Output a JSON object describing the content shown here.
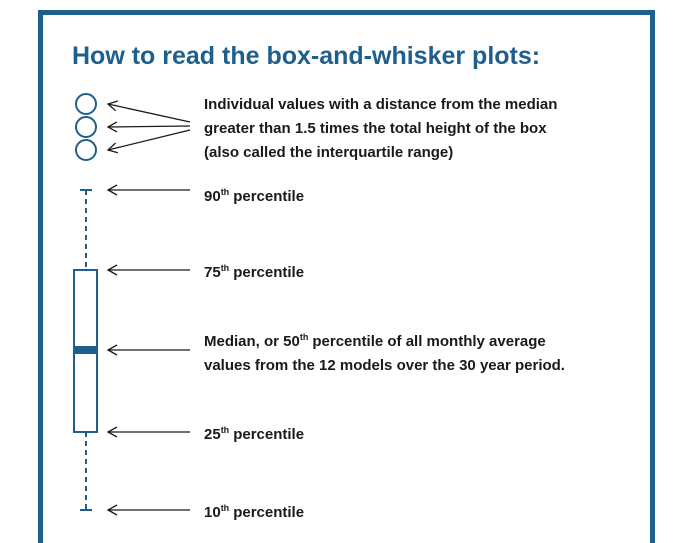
{
  "title": "How to read the box-and-whisker plots:",
  "outliers": {
    "lines": [
      "Individual values with a distance from the median",
      "greater than 1.5 times the total height of the box",
      "(also called the interquartile range)"
    ]
  },
  "percentiles": [
    {
      "number": "90",
      "suffix": "th",
      "text": "percentile"
    },
    {
      "number": "75",
      "suffix": "th",
      "text": "percentile"
    },
    {
      "number": "25",
      "suffix": "th",
      "text": "percentile"
    },
    {
      "number": "10",
      "suffix": "th",
      "text": "percentile"
    }
  ],
  "median": {
    "prefix": "Median, or 50",
    "suffix": "th",
    "rest": "percentile of all monthly average",
    "line2": "values from the 12 models over the 30 year period."
  }
}
